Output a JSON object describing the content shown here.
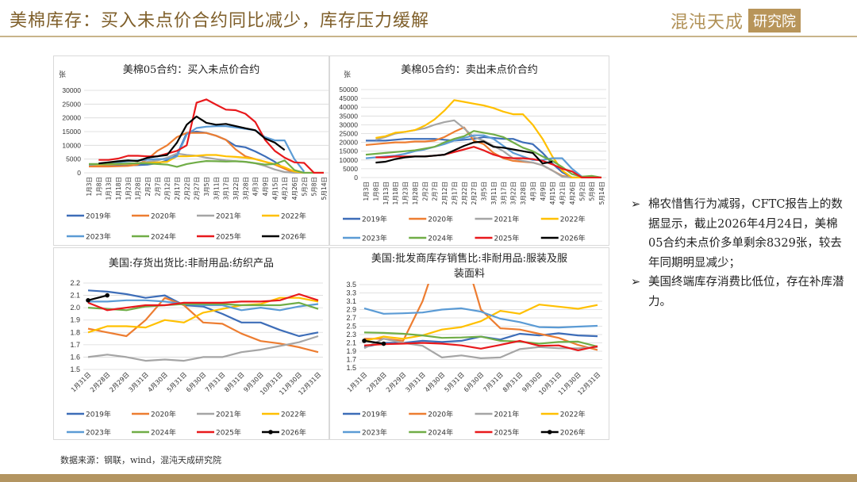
{
  "header": {
    "title": "美棉库存：买入未点价合约同比减少，库存压力缓解",
    "logo_main": "混沌天成",
    "logo_box": "研究院"
  },
  "notes": [
    "棉农惜售行为减弱，CFTC报告上的数据显示，截止2026年4月24日，美棉05合约未点价多单剩余8329张，较去年同期明显减少；",
    "美国终端库存消费比低位，存在补库潜力。"
  ],
  "source": "数据来源：钢联，wind，混沌天成研究院",
  "colors": {
    "2019年": "#3d6db8",
    "2020年": "#ed7d31",
    "2021年": "#a5a5a5",
    "2022年": "#ffc000",
    "2023年": "#5b9bd5",
    "2024年": "#70ad47",
    "2025年": "#e8191c",
    "2026年": "#000000"
  },
  "chart_data": [
    {
      "type": "line",
      "title": "美棉05合约：买入未点价合约",
      "unit": "张",
      "ylim": [
        0,
        30000
      ],
      "yticks": [
        0,
        5000,
        10000,
        15000,
        20000,
        25000,
        30000
      ],
      "grid": true,
      "legend": "bottom",
      "categories": [
        "1月3日",
        "1月8日",
        "1月13日",
        "1月18日",
        "1月23日",
        "1月28日",
        "2月2日",
        "2月7日",
        "2月12日",
        "2月17日",
        "2月22日",
        "2月27日",
        "3月5日",
        "3月11日",
        "3月17日",
        "3月22日",
        "3月28日",
        "4月3日",
        "4月9日",
        "4月15日",
        "4月21日",
        "4月26日",
        "5月2日",
        "5月8日",
        "5月14日"
      ],
      "series": [
        {
          "name": "2019年",
          "values": [
            2500,
            2500,
            2600,
            2700,
            2700,
            2800,
            3000,
            3500,
            4500,
            6500,
            14500,
            15000,
            14500,
            13500,
            12000,
            9800,
            9300,
            7800,
            6000,
            4000,
            1500,
            0,
            0,
            null,
            null
          ]
        },
        {
          "name": "2020年",
          "values": [
            2300,
            2300,
            2300,
            2400,
            2500,
            3000,
            5000,
            8000,
            10000,
            13000,
            14500,
            14500,
            14500,
            13500,
            12000,
            8500,
            6000,
            5000,
            4000,
            3000,
            1500,
            0,
            0,
            null,
            null
          ]
        },
        {
          "name": "2021年",
          "values": [
            3000,
            3000,
            3100,
            3200,
            3300,
            3500,
            4000,
            4500,
            5500,
            7000,
            6500,
            6200,
            5500,
            5000,
            4500,
            4200,
            4000,
            3500,
            2500,
            1200,
            300,
            0,
            0,
            null,
            null
          ]
        },
        {
          "name": "2022年",
          "values": [
            3000,
            3000,
            3100,
            3200,
            3300,
            3500,
            3600,
            3800,
            4000,
            6000,
            6000,
            6200,
            6500,
            6500,
            6000,
            5800,
            5500,
            5000,
            4000,
            3200,
            2000,
            500,
            0,
            0,
            0
          ]
        },
        {
          "name": "2023年",
          "values": [
            3000,
            3200,
            3500,
            3800,
            4200,
            4500,
            4800,
            5000,
            5000,
            6000,
            14000,
            16300,
            16800,
            17000,
            17000,
            16500,
            16000,
            15500,
            13000,
            11800,
            11800,
            5000,
            400,
            null,
            null
          ]
        },
        {
          "name": "2024年",
          "values": [
            3200,
            3200,
            3300,
            3300,
            3400,
            3500,
            3400,
            3200,
            3000,
            2200,
            3200,
            3800,
            4300,
            4200,
            4100,
            4200,
            4000,
            3500,
            3000,
            3200,
            4500,
            1000,
            0,
            0,
            0
          ]
        },
        {
          "name": "2025年",
          "values": [
            null,
            4700,
            4700,
            5200,
            6200,
            6200,
            6000,
            6000,
            7000,
            8000,
            10000,
            25500,
            26700,
            24800,
            23000,
            22800,
            21500,
            18500,
            12000,
            8000,
            5500,
            3800,
            3600,
            0,
            0
          ]
        },
        {
          "name": "2026年",
          "values": [
            null,
            3400,
            3800,
            4200,
            4500,
            4300,
            5500,
            6000,
            6500,
            11000,
            17500,
            20500,
            18200,
            17500,
            17800,
            17000,
            16200,
            15500,
            12500,
            11000,
            8300,
            null,
            null,
            null,
            null
          ]
        }
      ]
    },
    {
      "type": "line",
      "title": "美棉05合约：卖出未点价合约",
      "unit": "张",
      "ylim": [
        0,
        50000
      ],
      "yticks": [
        0,
        5000,
        10000,
        15000,
        20000,
        25000,
        30000,
        35000,
        40000,
        45000,
        50000
      ],
      "grid": true,
      "legend": "bottom",
      "categories": [
        "1月3日",
        "1月8日",
        "1月13日",
        "1月18日",
        "1月23日",
        "1月28日",
        "2月2日",
        "2月7日",
        "2月12日",
        "2月17日",
        "2月22日",
        "2月27日",
        "3月5日",
        "3月11日",
        "3月17日",
        "3月22日",
        "3月28日",
        "4月3日",
        "4月9日",
        "4月15日",
        "4月21日",
        "4月26日",
        "5月2日",
        "5月8日",
        "5月14日"
      ],
      "series": [
        {
          "name": "2019年",
          "values": [
            21000,
            21000,
            21000,
            21500,
            22000,
            22000,
            22000,
            22000,
            21500,
            21000,
            21500,
            22000,
            23000,
            22500,
            22000,
            22000,
            20000,
            19000,
            14000,
            8000,
            3000,
            0,
            0,
            null,
            null
          ]
        },
        {
          "name": "2020年",
          "values": [
            18500,
            19000,
            19500,
            20000,
            20000,
            20500,
            20500,
            21000,
            23000,
            26000,
            28500,
            21000,
            19000,
            14000,
            11000,
            9500,
            9000,
            8500,
            7000,
            4000,
            1000,
            0,
            0,
            null,
            null
          ]
        },
        {
          "name": "2021年",
          "values": [
            null,
            21500,
            23000,
            25000,
            26000,
            27000,
            28000,
            30000,
            31500,
            32500,
            28000,
            23000,
            21000,
            18000,
            15000,
            11000,
            9500,
            8500,
            7000,
            4000,
            500,
            0,
            0,
            null,
            null
          ]
        },
        {
          "name": "2022年",
          "values": [
            null,
            22500,
            23500,
            25500,
            26000,
            27000,
            29500,
            33000,
            38000,
            44000,
            43000,
            42000,
            41000,
            39500,
            37500,
            36000,
            36000,
            30000,
            22000,
            12000,
            4000,
            0,
            0,
            0,
            null
          ]
        },
        {
          "name": "2023年",
          "values": [
            11000,
            11500,
            12000,
            12500,
            13500,
            15000,
            16000,
            17500,
            19000,
            21000,
            22500,
            24000,
            24000,
            22000,
            18000,
            14000,
            12000,
            10000,
            10000,
            11000,
            11000,
            5000,
            500,
            0,
            null
          ]
        },
        {
          "name": "2024年",
          "values": [
            13000,
            13500,
            14000,
            14500,
            15000,
            15500,
            16500,
            17500,
            20000,
            22000,
            23500,
            26500,
            25500,
            24500,
            23000,
            20000,
            17000,
            15000,
            12000,
            9500,
            6000,
            2000,
            500,
            1000,
            0
          ]
        },
        {
          "name": "2025年",
          "values": [
            null,
            11500,
            11500,
            12000,
            12000,
            12000,
            12000,
            12500,
            13000,
            14500,
            16000,
            17500,
            15500,
            13000,
            11500,
            11000,
            11000,
            10500,
            9500,
            7500,
            5000,
            3500,
            0,
            0,
            0
          ]
        },
        {
          "name": "2026年",
          "values": [
            null,
            8500,
            9000,
            10500,
            11500,
            12000,
            12000,
            12500,
            13000,
            15500,
            18000,
            20000,
            20500,
            17500,
            17000,
            16000,
            15000,
            14000,
            8000,
            9000,
            null,
            null,
            null,
            null,
            null
          ]
        }
      ]
    },
    {
      "type": "line",
      "title": "美国:存货出货比:非耐用品:纺织产品",
      "ylim": [
        1.5,
        2.2
      ],
      "yticks": [
        1.5,
        1.6,
        1.7,
        1.8,
        1.9,
        2.0,
        2.1,
        2.2
      ],
      "grid": true,
      "legend": "bottom",
      "categories": [
        "1月31日",
        "2月28日",
        "2月29日",
        "3月31日",
        "4月30日",
        "5月31日",
        "6月30日",
        "7月31日",
        "8月31日",
        "9月30日",
        "10月31日",
        "11月30日",
        "12月31日"
      ],
      "series": [
        {
          "name": "2019年",
          "values": [
            2.14,
            2.13,
            2.11,
            2.08,
            2.1,
            2.02,
            2.01,
            1.95,
            1.88,
            1.88,
            1.82,
            1.77,
            1.8
          ]
        },
        {
          "name": "2020年",
          "values": [
            1.83,
            1.8,
            1.77,
            1.9,
            2.08,
            2.02,
            1.88,
            1.87,
            1.79,
            1.73,
            1.71,
            1.68,
            1.64
          ]
        },
        {
          "name": "2021年",
          "values": [
            1.6,
            1.62,
            1.6,
            1.57,
            1.58,
            1.57,
            1.6,
            1.6,
            1.64,
            1.66,
            1.69,
            1.72,
            1.77
          ]
        },
        {
          "name": "2022年",
          "values": [
            1.8,
            1.85,
            1.85,
            1.84,
            1.9,
            1.88,
            1.96,
            1.99,
            2.02,
            2.03,
            2.08,
            2.08,
            2.05
          ]
        },
        {
          "name": "2023年",
          "values": [
            2.05,
            2.05,
            2.06,
            2.06,
            2.05,
            2.03,
            2.02,
            2.02,
            1.98,
            2.0,
            1.98,
            2.01,
            2.03
          ]
        },
        {
          "name": "2024年",
          "values": [
            2.0,
            1.99,
            1.98,
            2.01,
            2.02,
            2.03,
            2.03,
            2.03,
            2.02,
            2.02,
            2.02,
            2.04,
            1.99
          ]
        },
        {
          "name": "2025年",
          "values": [
            2.04,
            1.98,
            2.0,
            2.02,
            2.02,
            2.04,
            2.04,
            2.04,
            2.05,
            2.05,
            2.06,
            2.11,
            2.06
          ]
        },
        {
          "name": "2026年",
          "values": [
            2.06,
            2.1,
            null,
            null,
            null,
            null,
            null,
            null,
            null,
            null,
            null,
            null,
            null
          ],
          "markers": true
        }
      ]
    },
    {
      "type": "line",
      "title": "美国:批发商库存销售比:非耐用品:服装及服装面料",
      "ylim": [
        1.5,
        3.5
      ],
      "yticks": [
        1.5,
        1.7,
        1.9,
        2.1,
        2.3,
        2.5,
        2.7,
        2.9,
        3.1,
        3.3,
        3.5
      ],
      "grid": true,
      "legend": "bottom",
      "categories": [
        "1月31日",
        "2月28日",
        "2月29日",
        "3月31日",
        "4月30日",
        "5月31日",
        "6月30日",
        "7月31日",
        "8月31日",
        "9月30日",
        "10月31日",
        "11月30日",
        "12月31日"
      ],
      "series": [
        {
          "name": "2019年",
          "values": [
            2.0,
            2.1,
            2.1,
            2.15,
            2.12,
            2.15,
            2.25,
            2.18,
            2.32,
            2.28,
            2.33,
            2.28,
            2.26
          ]
        },
        {
          "name": "2020年",
          "values": [
            2.2,
            2.2,
            2.15,
            3.1,
            4.5,
            4.5,
            2.9,
            2.45,
            2.42,
            2.32,
            2.22,
            2.05,
            1.93
          ]
        },
        {
          "name": "2021年",
          "values": [
            1.97,
            2.2,
            2.1,
            2.03,
            1.75,
            1.8,
            1.73,
            1.75,
            1.95,
            2.0,
            1.97,
            1.97,
            2.0
          ]
        },
        {
          "name": "2022年",
          "values": [
            2.15,
            2.25,
            2.2,
            2.28,
            2.42,
            2.48,
            2.62,
            2.87,
            2.8,
            3.02,
            2.97,
            2.92,
            3.01
          ]
        },
        {
          "name": "2023年",
          "values": [
            2.93,
            2.8,
            2.81,
            2.83,
            2.9,
            2.93,
            2.85,
            2.68,
            2.6,
            2.48,
            2.47,
            2.49,
            2.51
          ]
        },
        {
          "name": "2024年",
          "values": [
            2.35,
            2.34,
            2.32,
            2.28,
            2.22,
            2.23,
            2.25,
            2.15,
            2.13,
            2.08,
            2.12,
            2.13,
            2.01
          ]
        },
        {
          "name": "2025年",
          "values": [
            2.04,
            2.07,
            2.08,
            2.1,
            2.08,
            2.04,
            1.96,
            2.05,
            2.15,
            2.03,
            2.04,
            1.92,
            2.02
          ]
        },
        {
          "name": "2026年",
          "values": [
            2.15,
            2.08,
            null,
            null,
            null,
            null,
            null,
            null,
            null,
            null,
            null,
            null,
            null
          ],
          "markers": true
        }
      ]
    }
  ]
}
